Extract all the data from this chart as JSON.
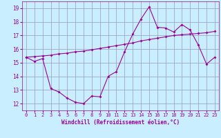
{
  "xlabel": "Windchill (Refroidissement éolien,°C)",
  "x_hours": [
    0,
    1,
    2,
    3,
    4,
    5,
    6,
    7,
    8,
    9,
    10,
    11,
    12,
    13,
    14,
    15,
    16,
    17,
    18,
    19,
    20,
    21,
    22,
    23
  ],
  "line1_y": [
    15.4,
    15.1,
    15.3,
    13.1,
    12.85,
    12.4,
    12.1,
    12.0,
    12.55,
    12.5,
    14.0,
    14.35,
    15.8,
    17.1,
    18.2,
    19.1,
    17.6,
    17.55,
    17.25,
    17.8,
    17.4,
    16.3,
    14.9,
    15.4
  ],
  "line2_y": [
    15.4,
    15.45,
    15.5,
    15.55,
    15.65,
    15.7,
    15.8,
    15.85,
    15.95,
    16.05,
    16.15,
    16.25,
    16.35,
    16.45,
    16.6,
    16.7,
    16.8,
    16.9,
    17.0,
    17.05,
    17.1,
    17.15,
    17.2,
    17.3
  ],
  "line_color": "#990099",
  "bg_color": "#c8eeff",
  "grid_color": "#9999bb",
  "ylim": [
    11.5,
    19.5
  ],
  "xlim": [
    -0.5,
    23.5
  ],
  "yticks": [
    12,
    13,
    14,
    15,
    16,
    17,
    18,
    19
  ],
  "xticks": [
    0,
    1,
    2,
    3,
    4,
    5,
    6,
    7,
    8,
    9,
    10,
    11,
    12,
    13,
    14,
    15,
    16,
    17,
    18,
    19,
    20,
    21,
    22,
    23
  ]
}
